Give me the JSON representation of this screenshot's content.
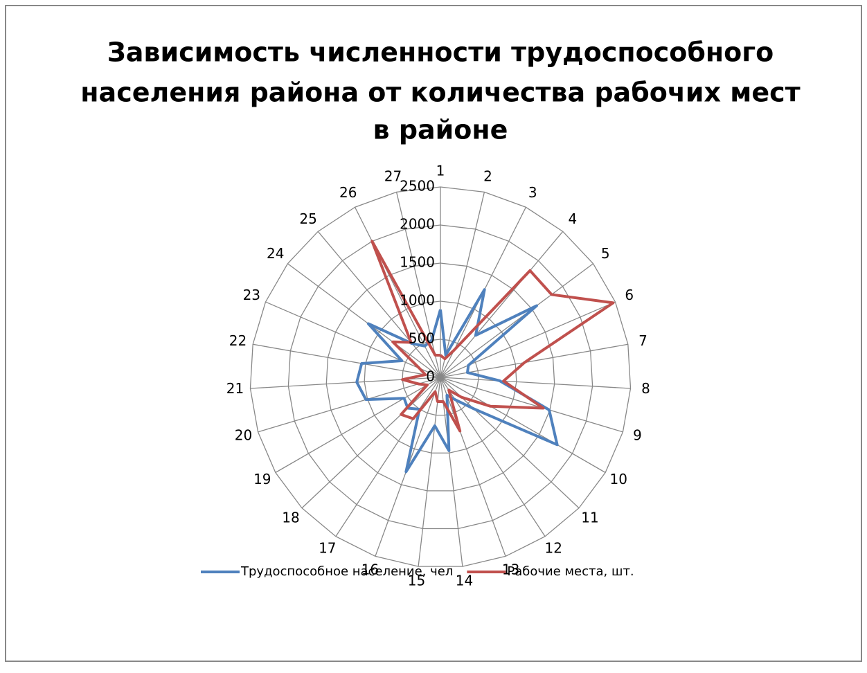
{
  "chart_data": {
    "type": "radar",
    "title": [
      "Зависимость численности трудоспособного",
      "населения района от количества рабочих мест",
      "в районе"
    ],
    "categories": [
      "1",
      "2",
      "3",
      "4",
      "5",
      "6",
      "7",
      "8",
      "9",
      "10",
      "11",
      "12",
      "13",
      "14",
      "15",
      "16",
      "17",
      "18",
      "19",
      "20",
      "21",
      "22",
      "23",
      "24",
      "25",
      "26",
      "27"
    ],
    "series": [
      {
        "name": "Трудоспособное население, чел",
        "color": "#4f81bd",
        "values": [
          890,
          300,
          1290,
          720,
          1575,
          400,
          360,
          780,
          1490,
          1770,
          600,
          350,
          250,
          970,
          640,
          1320,
          500,
          590,
          550,
          1020,
          1100,
          1050,
          550,
          1180,
          580,
          460,
          500
        ]
      },
      {
        "name": "Рабочие места, шт.",
        "color": "#c0504d",
        "values": [
          290,
          250,
          400,
          1830,
          1820,
          2470,
          1120,
          830,
          1410,
          760,
          380,
          200,
          750,
          320,
          320,
          200,
          650,
          710,
          200,
          300,
          500,
          200,
          300,
          780,
          600,
          2000,
          300
        ]
      }
    ],
    "ylim": [
      0,
      2500
    ],
    "yticks": [
      0,
      500,
      1000,
      1500,
      2000,
      2500
    ],
    "grid": true,
    "legend": "bottom"
  }
}
